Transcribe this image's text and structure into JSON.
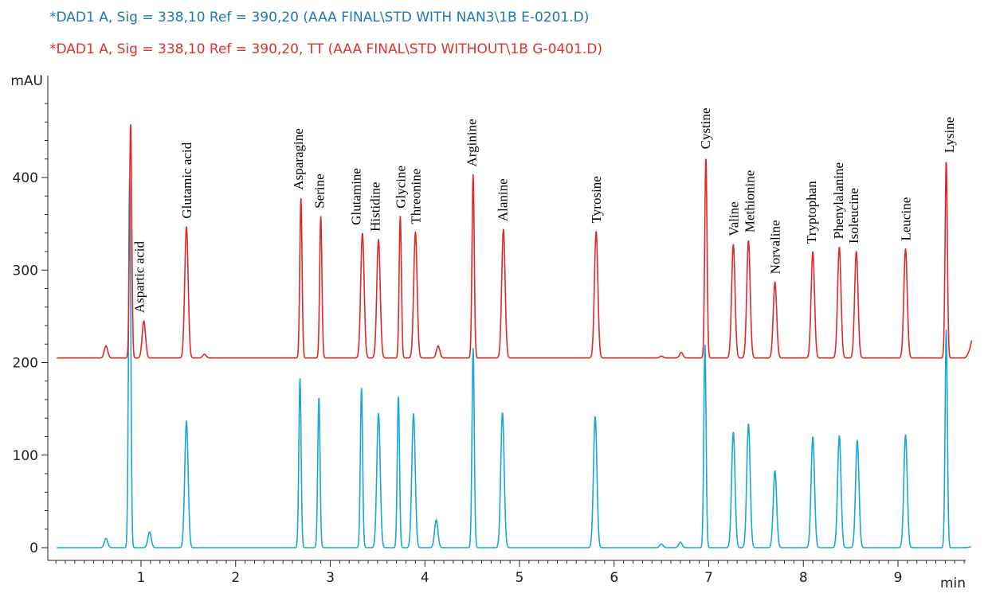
{
  "legend": {
    "blue": "*DAD1 A, Sig = 338,10 Ref = 390,20 (AAA FINAL\\STD WITH NAN3\\1B E-0201.D)",
    "red": "*DAD1 A, Sig = 338,10 Ref = 390,20, TT (AAA FINAL\\STD WITHOUT\\1B G-0401.D)"
  },
  "colors": {
    "blue_series": "#1aa7d6",
    "red_series": "#e02828",
    "axis": "#222222"
  },
  "chart_data": {
    "type": "line",
    "ylabel": "mAU",
    "xlabel": "min",
    "xlim": [
      0.05,
      9.8
    ],
    "ylim": [
      -15,
      500
    ],
    "x_ticks": [
      1,
      2,
      3,
      4,
      5,
      6,
      7,
      8,
      9
    ],
    "y_ticks": [
      0,
      100,
      200,
      300,
      400
    ],
    "grid": false,
    "series": [
      {
        "name": "*DAD1 A, Sig = 338,10 Ref = 390,20 (AAA FINAL\\STD WITH NAN3\\1B E-0201.D)",
        "color": "#1aa7d6",
        "baseline": 0,
        "x_end": 9.77,
        "y_end": 1,
        "peaks": [
          {
            "x": 0.63,
            "y": 10
          },
          {
            "x": 0.88,
            "y": 400
          },
          {
            "x": 1.09,
            "y": 17
          },
          {
            "x": 1.48,
            "y": 137
          },
          {
            "x": 2.68,
            "y": 183
          },
          {
            "x": 2.88,
            "y": 163
          },
          {
            "x": 3.33,
            "y": 173
          },
          {
            "x": 3.51,
            "y": 145
          },
          {
            "x": 3.72,
            "y": 164
          },
          {
            "x": 3.88,
            "y": 145
          },
          {
            "x": 4.12,
            "y": 30
          },
          {
            "x": 4.51,
            "y": 216
          },
          {
            "x": 4.82,
            "y": 146
          },
          {
            "x": 5.8,
            "y": 142
          },
          {
            "x": 6.5,
            "y": 4
          },
          {
            "x": 6.7,
            "y": 6
          },
          {
            "x": 6.96,
            "y": 220
          },
          {
            "x": 7.26,
            "y": 125
          },
          {
            "x": 7.42,
            "y": 134
          },
          {
            "x": 7.7,
            "y": 83
          },
          {
            "x": 8.1,
            "y": 120
          },
          {
            "x": 8.38,
            "y": 121
          },
          {
            "x": 8.57,
            "y": 116
          },
          {
            "x": 9.08,
            "y": 122
          },
          {
            "x": 9.51,
            "y": 235
          }
        ]
      },
      {
        "name": "*DAD1 A, Sig = 338,10 Ref = 390,20, TT (AAA FINAL\\STD WITHOUT\\1B G-0401.D)",
        "color": "#e02828",
        "baseline": 205,
        "x_end": 9.78,
        "y_end": 224,
        "peaks": [
          {
            "x": 0.63,
            "y": 218
          },
          {
            "x": 0.89,
            "y": 458
          },
          {
            "x": 1.03,
            "y": 245
          },
          {
            "x": 1.48,
            "y": 347
          },
          {
            "x": 1.67,
            "y": 209
          },
          {
            "x": 2.69,
            "y": 378
          },
          {
            "x": 2.9,
            "y": 358
          },
          {
            "x": 3.34,
            "y": 340
          },
          {
            "x": 3.51,
            "y": 333
          },
          {
            "x": 3.74,
            "y": 358
          },
          {
            "x": 3.9,
            "y": 341
          },
          {
            "x": 4.14,
            "y": 218
          },
          {
            "x": 4.51,
            "y": 403
          },
          {
            "x": 4.83,
            "y": 344
          },
          {
            "x": 5.81,
            "y": 342
          },
          {
            "x": 6.5,
            "y": 207
          },
          {
            "x": 6.71,
            "y": 211
          },
          {
            "x": 6.97,
            "y": 422
          },
          {
            "x": 7.26,
            "y": 328
          },
          {
            "x": 7.42,
            "y": 332
          },
          {
            "x": 7.7,
            "y": 287
          },
          {
            "x": 8.1,
            "y": 320
          },
          {
            "x": 8.38,
            "y": 325
          },
          {
            "x": 8.56,
            "y": 320
          },
          {
            "x": 9.08,
            "y": 323
          },
          {
            "x": 9.51,
            "y": 418
          }
        ]
      }
    ],
    "annotations": [
      {
        "text": "Aspartic acid",
        "x": 0.98
      },
      {
        "text": "Glutamic acid",
        "x": 1.48
      },
      {
        "text": "Asparagine",
        "x": 2.66
      },
      {
        "text": "Serine",
        "x": 2.88
      },
      {
        "text": "Glutamine",
        "x": 3.27
      },
      {
        "text": "Histidine",
        "x": 3.47
      },
      {
        "text": "Glycine",
        "x": 3.74
      },
      {
        "text": "Threonine",
        "x": 3.9
      },
      {
        "text": "Arginine",
        "x": 4.49
      },
      {
        "text": "Alanine",
        "x": 4.82
      },
      {
        "text": "Tyrosine",
        "x": 5.81
      },
      {
        "text": "Cystine",
        "x": 6.96
      },
      {
        "text": "Valine",
        "x": 7.26
      },
      {
        "text": "Methionine",
        "x": 7.43
      },
      {
        "text": "Norvaline",
        "x": 7.7
      },
      {
        "text": "Tryptophan",
        "x": 8.08
      },
      {
        "text": "Phenylalanine",
        "x": 8.37
      },
      {
        "text": "Isoleucine",
        "x": 8.53
      },
      {
        "text": "Leucine",
        "x": 9.08
      },
      {
        "text": "Lysine",
        "x": 9.54
      }
    ]
  }
}
